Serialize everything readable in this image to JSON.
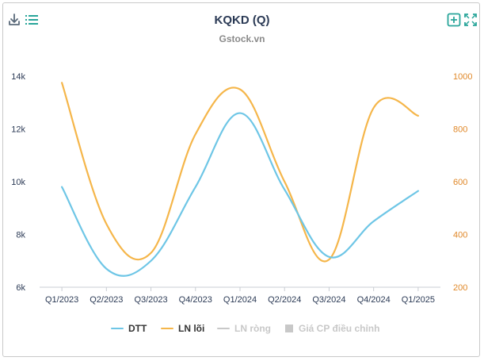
{
  "title": "KQKD (Q)",
  "subtitle": "Gstock.vn",
  "toolbar": {
    "download_icon": "download-icon",
    "menu_icon": "menu-icon",
    "add_icon": "add-box-icon",
    "fullscreen_icon": "fullscreen-icon"
  },
  "colors": {
    "dtt": "#6ec6e6",
    "ln_loi": "#f5b64a",
    "disabled": "#c8c8c8",
    "axis_left_text": "#2b3a55",
    "axis_right_text": "#e0892a",
    "accent": "#29a59a"
  },
  "legend": [
    {
      "label": "DTT",
      "active": true
    },
    {
      "label": "LN lõi",
      "active": true
    },
    {
      "label": "LN ròng",
      "active": false
    },
    {
      "label": "Giá CP điều chỉnh",
      "active": false
    }
  ],
  "chart_data": {
    "type": "line",
    "smooth": true,
    "categories": [
      "Q1/2023",
      "Q2/2023",
      "Q3/2023",
      "Q4/2023",
      "Q1/2024",
      "Q2/2024",
      "Q3/2024",
      "Q4/2024",
      "Q1/2025"
    ],
    "y_left": {
      "ticks": [
        "6k",
        "8k",
        "10k",
        "12k",
        "14k"
      ],
      "range": [
        6000,
        14000
      ]
    },
    "y_right": {
      "ticks": [
        "200",
        "400",
        "600",
        "800",
        "1000"
      ],
      "range": [
        200,
        1000
      ]
    },
    "grid": false,
    "legend_position": "bottom",
    "series": [
      {
        "name": "DTT",
        "axis": "left",
        "values": [
          9800,
          6700,
          7000,
          9800,
          12600,
          9700,
          7150,
          8500,
          9650
        ]
      },
      {
        "name": "LN lõi",
        "axis": "right",
        "values": [
          975,
          440,
          330,
          780,
          950,
          600,
          305,
          880,
          850
        ]
      }
    ]
  }
}
